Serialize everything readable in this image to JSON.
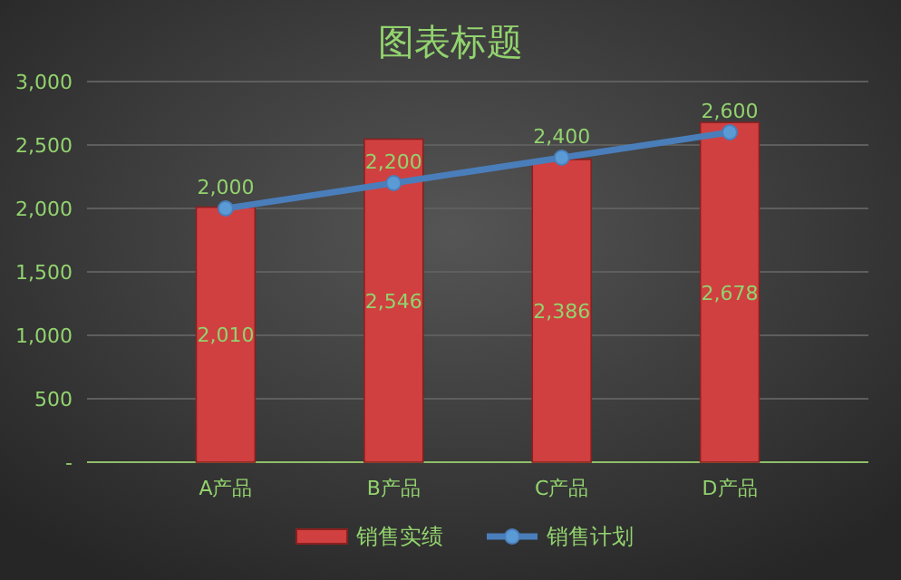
{
  "chart_data": {
    "type": "bar",
    "title": "图表标题",
    "categories": [
      "A产品",
      "B产品",
      "C产品",
      "D产品"
    ],
    "series": [
      {
        "name": "销售实绩",
        "color": "#d04040",
        "values": [
          2010,
          2546,
          2386,
          2678
        ],
        "value_labels": [
          "2,010",
          "2,546",
          "2,386",
          "2,678"
        ]
      },
      {
        "name": "销售计划",
        "type": "line",
        "color": "#4a7ebb",
        "values": [
          2000,
          2200,
          2400,
          2600
        ],
        "value_labels": [
          "2,000",
          "2,200",
          "2,400",
          "2,600"
        ],
        "marker": "circle"
      }
    ],
    "ylim": [
      0,
      3000
    ],
    "yticks": [
      {
        "value": 0,
        "label": "-"
      },
      {
        "value": 500,
        "label": "500"
      },
      {
        "value": 1000,
        "label": "1,000"
      },
      {
        "value": 1500,
        "label": "1,500"
      },
      {
        "value": 2000,
        "label": "2,000"
      },
      {
        "value": 2500,
        "label": "2,500"
      },
      {
        "value": 3000,
        "label": "3,000"
      }
    ],
    "grid": "y",
    "legend": "bottom"
  }
}
